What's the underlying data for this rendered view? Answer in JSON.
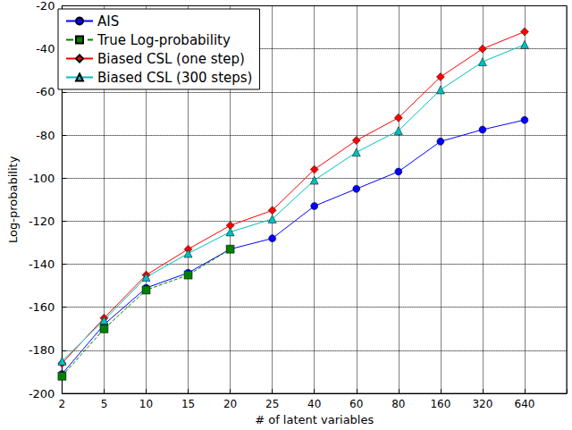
{
  "chart_data": {
    "type": "line",
    "x_label": "# of latent variables",
    "y_label": "Log-probability",
    "categories": [
      "2",
      "5",
      "10",
      "15",
      "20",
      "25",
      "40",
      "60",
      "80",
      "160",
      "320",
      "640",
      null
    ],
    "series": [
      {
        "name": "AIS",
        "color": "#0000ff",
        "marker": "circle",
        "line_style": "solid",
        "values": [
          -191,
          -168,
          -151,
          -144,
          -133,
          -128,
          -113,
          -105,
          -97,
          -83,
          -77.5,
          -73,
          null
        ]
      },
      {
        "name": "True Log-probability",
        "color": "#008000",
        "marker": "square",
        "line_style": "dashed",
        "values": [
          -192,
          -170,
          -152,
          -145,
          -133,
          null,
          null,
          null,
          null,
          null,
          null,
          null,
          null
        ]
      },
      {
        "name": "Biased CSL (one step)",
        "color": "#ff0000",
        "marker": "diamond",
        "line_style": "solid",
        "values": [
          -186,
          -165,
          -145,
          -133,
          -122,
          -115,
          -96,
          -82.5,
          -72,
          -53,
          -40,
          -32,
          null
        ]
      },
      {
        "name": "Biased CSL (300 steps)",
        "color": "#00bfbf",
        "marker": "triangle",
        "line_style": "solid",
        "values": [
          -185,
          -166,
          -146,
          -135,
          -125,
          -119,
          -101,
          -88,
          -78,
          -59,
          -46,
          -38,
          null
        ]
      }
    ],
    "ylim": [
      -200,
      -20
    ],
    "yticks": [
      -200,
      -180,
      -160,
      -140,
      -120,
      -100,
      -80,
      -60,
      -40,
      -20
    ],
    "grid": true,
    "legend": "upper left"
  }
}
